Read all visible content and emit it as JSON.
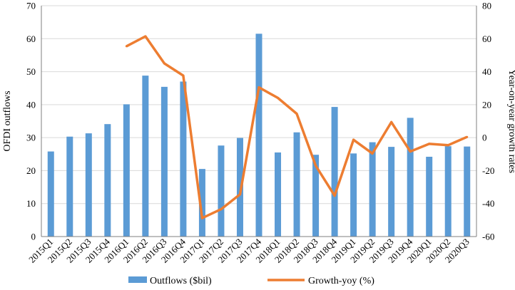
{
  "chart_data": {
    "type": "bar",
    "categories": [
      "2015Q1",
      "2015Q2",
      "2015Q3",
      "2015Q4",
      "2016Q1",
      "2016Q2",
      "2016Q3",
      "2016Q4",
      "2017Q1",
      "2017Q2",
      "2017Q3",
      "2017Q4",
      "2018Q1",
      "2018Q2",
      "2018Q3",
      "2018Q4",
      "2019Q1",
      "2019Q2",
      "2019Q3",
      "2019Q4",
      "2020Q1",
      "2020Q2",
      "2020Q3"
    ],
    "series": [
      {
        "name": "Outflows ($bil)",
        "type": "bar",
        "axis": "left",
        "color": "#5B9BD5",
        "values": [
          25.8,
          30.3,
          31.3,
          34.1,
          40.1,
          48.8,
          45.4,
          47.0,
          20.5,
          27.6,
          29.9,
          61.5,
          25.5,
          31.6,
          24.8,
          39.3,
          25.2,
          28.6,
          27.2,
          36.0,
          24.2,
          27.4,
          27.3
        ]
      },
      {
        "name": "Growth-yoy (%)",
        "type": "line",
        "axis": "right",
        "color": "#ED7D31",
        "values": [
          null,
          null,
          null,
          null,
          55.4,
          61.4,
          45.0,
          37.6,
          -48.8,
          -43.4,
          -34.4,
          30.5,
          24.1,
          14.5,
          -17.0,
          -35.2,
          -1.3,
          -9.6,
          9.4,
          -8.4,
          -3.8,
          -4.6,
          0.4
        ]
      }
    ],
    "ylabel": "OFDI outflows",
    "y2label": "Year-on-year growth rates",
    "ylim": [
      0,
      70
    ],
    "y2lim": [
      -60,
      80
    ],
    "yticks": [
      0,
      10,
      20,
      30,
      40,
      50,
      60,
      70
    ],
    "y2ticks": [
      -60,
      -40,
      -20,
      0,
      20,
      40,
      60,
      80
    ],
    "grid": true,
    "legend": "bottom"
  }
}
